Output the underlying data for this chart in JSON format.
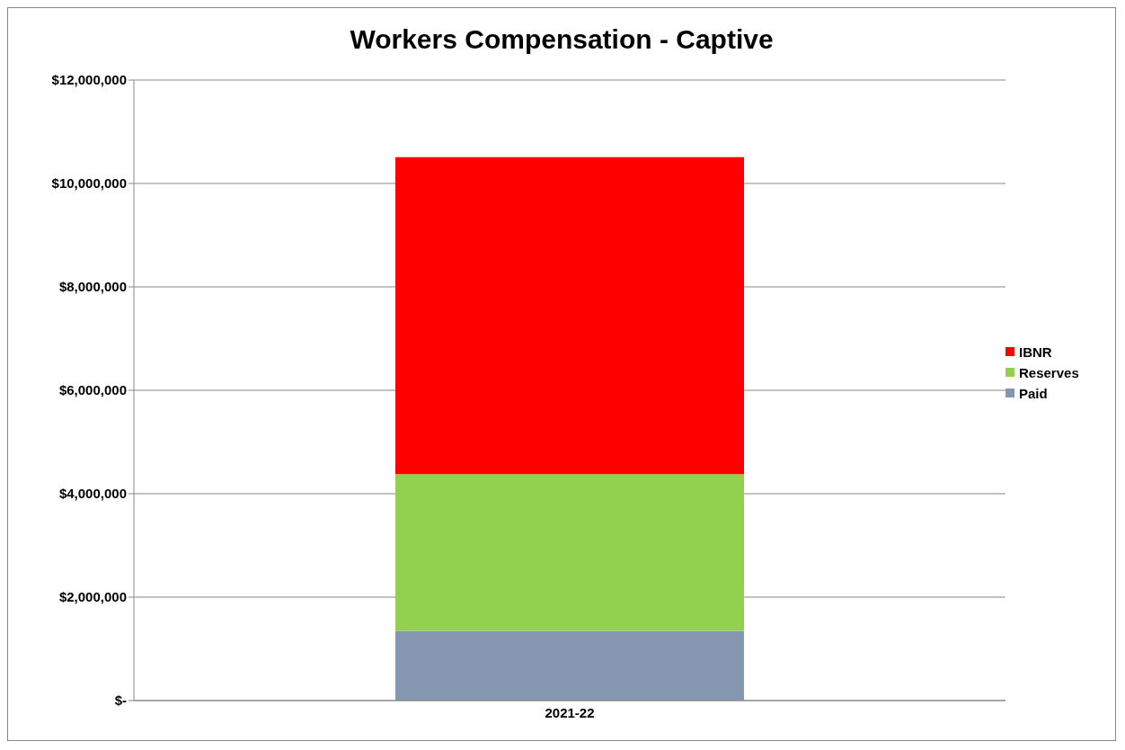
{
  "chart_data": {
    "type": "bar",
    "title": "Workers Compensation - Captive",
    "categories": [
      "2021-22"
    ],
    "stacked": true,
    "series": [
      {
        "name": "Paid",
        "color": "#8496b0",
        "values": [
          1350000
        ]
      },
      {
        "name": "Reserves",
        "color": "#92d050",
        "values": [
          3030000
        ]
      },
      {
        "name": "IBNR",
        "color": "#ff0000",
        "values": [
          6130000
        ]
      }
    ],
    "ylim": [
      0,
      12000000
    ],
    "yticks": [
      {
        "value": 0,
        "label": "$-"
      },
      {
        "value": 2000000,
        "label": "$2,000,000"
      },
      {
        "value": 4000000,
        "label": "$4,000,000"
      },
      {
        "value": 6000000,
        "label": "$6,000,000"
      },
      {
        "value": 8000000,
        "label": "$8,000,000"
      },
      {
        "value": 10000000,
        "label": "$10,000,000"
      },
      {
        "value": 12000000,
        "label": "$12,000,000"
      }
    ],
    "grid": "y",
    "legend": "right"
  }
}
